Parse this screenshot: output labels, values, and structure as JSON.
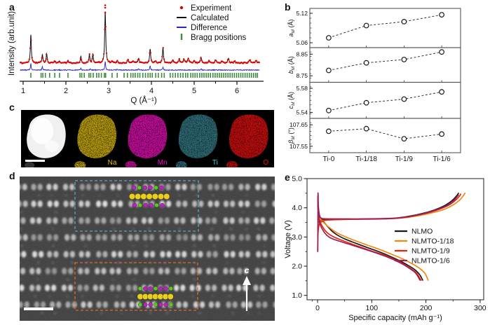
{
  "panels": {
    "a": "a",
    "b": "b",
    "c": "c",
    "d": "d",
    "e": "e"
  },
  "colors": {
    "experiment_red": "#e00000",
    "calculated_black": "#111111",
    "difference_blue": "#2626d8",
    "bragg_green": "#3e8c3e",
    "frame_gray": "#555555",
    "nlmo": "#1a1a1a",
    "nlmto18": "#f5870e",
    "nlmto9": "#e8220b",
    "nlmto6": "#99215e",
    "na_map": "#b69a08",
    "na_label": "#dcc011",
    "mn_map": "#c40c9c",
    "mn_label": "#ea14c4",
    "ti_map": "#2e6b74",
    "ti_label": "#41d0e0",
    "o_map": "#c11010",
    "o_label": "#f01800",
    "gray_particle": "#f0f0f0",
    "atom_purple": "#c21fc2",
    "atom_green": "#5dc81f",
    "atom_yellow": "#eace1e",
    "box_blue": "#63a0bf",
    "box_orange": "#dd6a2c"
  },
  "chart_data": [
    {
      "id": "xrd",
      "type": "line",
      "xlabel": "Q (Å⁻¹)",
      "ylabel": "Intensity (arb.unit)",
      "xlim": [
        0.93,
        6.53
      ],
      "xticks": [
        1,
        2,
        3,
        4,
        5,
        6
      ],
      "xtick_labels": [
        "1",
        "2",
        "3",
        "4",
        "5",
        "6"
      ],
      "legend": [
        "Experiment",
        "Calculated",
        "Difference",
        "Bragg positions"
      ],
      "peaks": [
        [
          1.18,
          0.55,
          0.013
        ],
        [
          1.45,
          0.16,
          0.013
        ],
        [
          1.55,
          0.18,
          0.013
        ],
        [
          1.74,
          0.03,
          0.015
        ],
        [
          1.85,
          0.04,
          0.015
        ],
        [
          2.05,
          0.04,
          0.015
        ],
        [
          2.35,
          0.13,
          0.013
        ],
        [
          2.55,
          0.16,
          0.013
        ],
        [
          2.63,
          0.17,
          0.013
        ],
        [
          2.92,
          1.0,
          0.014
        ],
        [
          3.08,
          0.03,
          0.015
        ],
        [
          3.2,
          0.05,
          0.015
        ],
        [
          3.45,
          0.07,
          0.015
        ],
        [
          3.57,
          0.04,
          0.015
        ],
        [
          3.7,
          0.09,
          0.015
        ],
        [
          3.97,
          0.27,
          0.014
        ],
        [
          4.1,
          0.04,
          0.015
        ],
        [
          4.27,
          0.29,
          0.014
        ],
        [
          4.5,
          0.06,
          0.018
        ],
        [
          4.65,
          0.07,
          0.018
        ],
        [
          4.76,
          0.07,
          0.018
        ],
        [
          4.86,
          0.09,
          0.018
        ],
        [
          5.0,
          0.05,
          0.018
        ],
        [
          5.16,
          0.11,
          0.016
        ],
        [
          5.35,
          0.04,
          0.02
        ],
        [
          5.5,
          0.05,
          0.02
        ],
        [
          5.65,
          0.04,
          0.02
        ],
        [
          5.8,
          0.09,
          0.018
        ],
        [
          5.95,
          0.03,
          0.02
        ],
        [
          6.3,
          0.06,
          0.02
        ],
        [
          6.45,
          0.05,
          0.02
        ]
      ],
      "diff_spikes": [
        [
          1.18,
          9
        ],
        [
          1.45,
          5
        ],
        [
          2.35,
          3
        ],
        [
          2.57,
          2
        ],
        [
          2.92,
          13
        ],
        [
          3.2,
          1.5
        ],
        [
          3.7,
          1.5
        ],
        [
          3.97,
          6
        ],
        [
          4.27,
          4.5
        ],
        [
          5.16,
          2
        ]
      ],
      "bragg": [
        1.18,
        1.42,
        1.46,
        1.52,
        1.62,
        1.74,
        1.85,
        2.05,
        2.33,
        2.37,
        2.43,
        2.54,
        2.58,
        2.64,
        2.72,
        2.77,
        2.83,
        2.9,
        2.93,
        3.08,
        3.2,
        3.36,
        3.44,
        3.52,
        3.57,
        3.62,
        3.68,
        3.73,
        3.8,
        3.86,
        3.92,
        3.97,
        4.02,
        4.1,
        4.16,
        4.24,
        4.3,
        4.44,
        4.5,
        4.56,
        4.62,
        4.68,
        4.74,
        4.8,
        4.85,
        4.92,
        4.97,
        5.02,
        5.07,
        5.13,
        5.18,
        5.23,
        5.28,
        5.33,
        5.38,
        5.44,
        5.49,
        5.54,
        5.59,
        5.64,
        5.69,
        5.74,
        5.79,
        5.84,
        5.89,
        5.94,
        5.99,
        6.04,
        6.09,
        6.14,
        6.19,
        6.24,
        6.29,
        6.34,
        6.39,
        6.44,
        6.48
      ]
    },
    {
      "id": "lattice",
      "type": "scatter",
      "categories": [
        "Ti-0",
        "Ti-1/18",
        "Ti-1/9",
        "Ti-1/6"
      ],
      "subplots": [
        {
          "sym": "a",
          "sub": "M",
          "unit": "(Å)",
          "tick_labels": [
            "5.12",
            "5.06"
          ],
          "ticks": [
            5.12,
            5.06
          ],
          "range": [
            5.05,
            5.13
          ],
          "values": [
            5.07,
            5.095,
            5.103,
            5.117
          ]
        },
        {
          "sym": "b",
          "sub": "M",
          "unit": "(Å)",
          "tick_labels": [
            "8.85",
            "8.75"
          ],
          "ticks": [
            8.85,
            8.75
          ],
          "range": [
            8.72,
            8.88
          ],
          "values": [
            8.775,
            8.81,
            8.825,
            8.86
          ]
        },
        {
          "sym": "c",
          "sub": "M",
          "unit": "(Å)",
          "tick_labels": [
            "5.58",
            "5.54"
          ],
          "ticks": [
            5.58,
            5.54
          ],
          "range": [
            5.53,
            5.59
          ],
          "values": [
            5.543,
            5.556,
            5.562,
            5.574
          ]
        },
        {
          "sym": "β",
          "sub": "M",
          "unit": "(°)",
          "tick_labels": [
            "107.65",
            "107.55"
          ],
          "ticks": [
            107.65,
            107.55
          ],
          "range": [
            107.52,
            107.68
          ],
          "values": [
            107.62,
            107.632,
            107.585,
            107.607
          ]
        }
      ]
    },
    {
      "id": "voltage",
      "type": "line",
      "xlabel": "Specific capacity (mAh g⁻¹)",
      "ylabel": "Voltage (V)",
      "xticks": [
        0,
        100,
        200,
        300
      ],
      "xtick_labels": [
        "0",
        "100",
        "200",
        "300"
      ],
      "yticks": [
        1,
        2,
        3,
        4,
        5
      ],
      "ytick_labels": [
        "1.0",
        "2.0",
        "3.0",
        "4.0",
        "5.0"
      ],
      "ylim": [
        1.0,
        5.0
      ],
      "xlim": [
        0,
        300
      ],
      "series": [
        {
          "name": "NLMO",
          "color": "#1a1a1a",
          "charge": [
            [
              0.5,
              3.05
            ],
            [
              1,
              3.45
            ],
            [
              3,
              3.52
            ],
            [
              8,
              3.58
            ],
            [
              20,
              3.6
            ],
            [
              50,
              3.61
            ],
            [
              90,
              3.615
            ],
            [
              120,
              3.625
            ],
            [
              145,
              3.65
            ],
            [
              165,
              3.7
            ],
            [
              185,
              3.77
            ],
            [
              205,
              3.86
            ],
            [
              222,
              3.97
            ],
            [
              237,
              4.1
            ],
            [
              249,
              4.26
            ],
            [
              257,
              4.42
            ],
            [
              260,
              4.5
            ]
          ],
          "discharge": [
            [
              0.5,
              4.35
            ],
            [
              1,
              4.05
            ],
            [
              2.5,
              3.82
            ],
            [
              5,
              3.66
            ],
            [
              9,
              3.56
            ],
            [
              14,
              3.46
            ],
            [
              20,
              3.33
            ],
            [
              28,
              3.18
            ],
            [
              38,
              3.05
            ],
            [
              52,
              2.92
            ],
            [
              70,
              2.79
            ],
            [
              90,
              2.65
            ],
            [
              110,
              2.52
            ],
            [
              130,
              2.37
            ],
            [
              150,
              2.2
            ],
            [
              165,
              2.05
            ],
            [
              178,
              1.9
            ],
            [
              188,
              1.72
            ],
            [
              194,
              1.52
            ]
          ]
        },
        {
          "name": "NLMTO-1/18",
          "color": "#f5870e",
          "charge": [
            [
              0.5,
              3.0
            ],
            [
              1,
              3.4
            ],
            [
              4,
              3.5
            ],
            [
              10,
              3.56
            ],
            [
              25,
              3.59
            ],
            [
              60,
              3.605
            ],
            [
              100,
              3.615
            ],
            [
              135,
              3.63
            ],
            [
              160,
              3.66
            ],
            [
              180,
              3.71
            ],
            [
              200,
              3.78
            ],
            [
              220,
              3.87
            ],
            [
              238,
              3.98
            ],
            [
              252,
              4.12
            ],
            [
              263,
              4.28
            ],
            [
              270,
              4.44
            ],
            [
              272,
              4.5
            ]
          ],
          "discharge": [
            [
              0.5,
              4.35
            ],
            [
              1,
              4.0
            ],
            [
              3,
              3.75
            ],
            [
              6,
              3.6
            ],
            [
              11,
              3.5
            ],
            [
              18,
              3.38
            ],
            [
              27,
              3.25
            ],
            [
              38,
              3.12
            ],
            [
              52,
              3.0
            ],
            [
              70,
              2.87
            ],
            [
              92,
              2.72
            ],
            [
              115,
              2.57
            ],
            [
              138,
              2.4
            ],
            [
              158,
              2.24
            ],
            [
              175,
              2.08
            ],
            [
              188,
              1.93
            ],
            [
              198,
              1.76
            ],
            [
              204,
              1.52
            ]
          ]
        },
        {
          "name": "NLMTO-1/9",
          "color": "#e8220b",
          "charge": [
            [
              0.3,
              2.5
            ],
            [
              0.8,
              3.1
            ],
            [
              3,
              3.42
            ],
            [
              8,
              3.53
            ],
            [
              18,
              3.58
            ],
            [
              45,
              3.6
            ],
            [
              85,
              3.61
            ],
            [
              120,
              3.62
            ],
            [
              148,
              3.645
            ],
            [
              168,
              3.69
            ],
            [
              188,
              3.76
            ],
            [
              208,
              3.85
            ],
            [
              226,
              3.96
            ],
            [
              242,
              4.09
            ],
            [
              254,
              4.25
            ],
            [
              262,
              4.4
            ],
            [
              264,
              4.47
            ]
          ],
          "discharge": [
            [
              0.5,
              4.4
            ],
            [
              1,
              3.95
            ],
            [
              2.5,
              3.68
            ],
            [
              5,
              3.5
            ],
            [
              9,
              3.36
            ],
            [
              14,
              3.22
            ],
            [
              21,
              3.1
            ],
            [
              30,
              3.0
            ],
            [
              43,
              2.9
            ],
            [
              60,
              2.78
            ],
            [
              80,
              2.65
            ],
            [
              100,
              2.52
            ],
            [
              120,
              2.4
            ],
            [
              140,
              2.25
            ],
            [
              158,
              2.08
            ],
            [
              172,
              1.92
            ],
            [
              183,
              1.75
            ],
            [
              191,
              1.52
            ]
          ]
        },
        {
          "name": "NLMTO-1/6",
          "color": "#99215e",
          "charge": [
            [
              0.4,
              2.52
            ],
            [
              0.8,
              4.44
            ],
            [
              1.6,
              4.05
            ],
            [
              3.5,
              3.75
            ],
            [
              7,
              3.645
            ],
            [
              15,
              3.625
            ],
            [
              45,
              3.62
            ],
            [
              85,
              3.62
            ],
            [
              120,
              3.63
            ],
            [
              148,
              3.655
            ],
            [
              168,
              3.7
            ],
            [
              188,
              3.77
            ],
            [
              207,
              3.86
            ],
            [
              225,
              3.97
            ],
            [
              241,
              4.1
            ],
            [
              252,
              4.26
            ],
            [
              260,
              4.44
            ]
          ],
          "discharge": [
            [
              0.5,
              4.35
            ],
            [
              1,
              3.9
            ],
            [
              2.5,
              3.6
            ],
            [
              5,
              3.42
            ],
            [
              9,
              3.26
            ],
            [
              14,
              3.12
            ],
            [
              21,
              3.0
            ],
            [
              30,
              2.92
            ],
            [
              45,
              2.83
            ],
            [
              62,
              2.73
            ],
            [
              82,
              2.61
            ],
            [
              102,
              2.49
            ],
            [
              122,
              2.36
            ],
            [
              142,
              2.21
            ],
            [
              158,
              2.06
            ],
            [
              170,
              1.92
            ],
            [
              181,
              1.76
            ],
            [
              189,
              1.52
            ]
          ]
        }
      ],
      "legend_position": "center-right"
    }
  ],
  "panel_c": {
    "maps": [
      {
        "name": "HAADF",
        "label": "",
        "fill": "#f0f0f0",
        "label_color": "#ffffff",
        "speckle": false
      },
      {
        "name": "Na",
        "label": "Na",
        "fill": "#b69a08",
        "label_color": "#dcc011",
        "speckle": true
      },
      {
        "name": "Mn",
        "label": "Mn",
        "fill": "#c40c9c",
        "label_color": "#ea14c4",
        "speckle": true
      },
      {
        "name": "Ti",
        "label": "Ti",
        "fill": "#2e6b74",
        "label_color": "#41d0e0",
        "speckle": true
      },
      {
        "name": "O",
        "label": "O",
        "fill": "#c11010",
        "label_color": "#f01800",
        "speckle": true
      }
    ]
  },
  "panel_d": {
    "axis_arrow_label": "c",
    "overlays": {
      "top": {
        "rows": [
          [
            "p",
            "g",
            "p",
            "p",
            "g",
            "p"
          ],
          [
            "y",
            "y",
            "y",
            "y",
            "y",
            "y",
            "y"
          ],
          [
            "p",
            "g",
            "p",
            "p",
            "g",
            "p"
          ]
        ]
      },
      "bottom": {
        "rows": [
          [
            "g",
            "p",
            "p",
            "g",
            "p",
            "p",
            "g"
          ],
          [
            "y",
            "y",
            "y",
            "y",
            "y",
            "y",
            "y"
          ],
          [
            "g",
            "p",
            "p",
            "g",
            "p",
            "p",
            "g"
          ]
        ]
      }
    }
  }
}
